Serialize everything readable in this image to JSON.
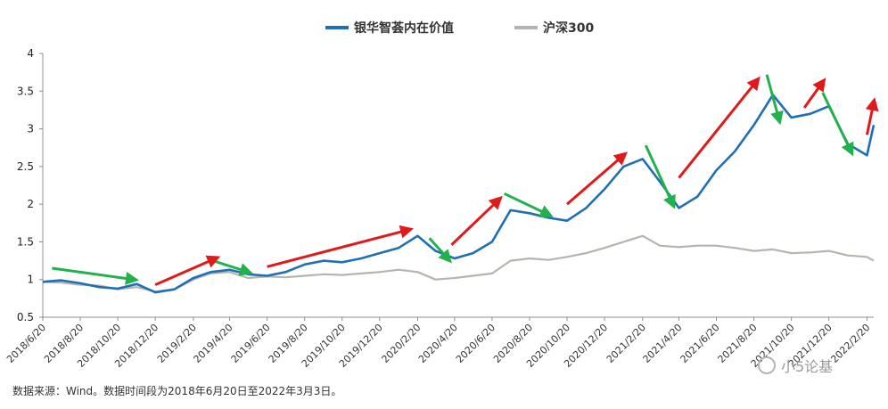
{
  "chart_data": {
    "type": "line",
    "legend": {
      "placement": "top-center"
    },
    "ylim": [
      0.5,
      4
    ],
    "yticks": [
      "0.5",
      "1",
      "1.5",
      "2",
      "2.5",
      "3",
      "3.5",
      "4"
    ],
    "xticks": [
      "2018/6/20",
      "2018/8/20",
      "2018/10/20",
      "2018/12/20",
      "2019/2/20",
      "2019/4/20",
      "2019/6/20",
      "2019/8/20",
      "2019/10/20",
      "2019/12/20",
      "2020/2/20",
      "2020/4/20",
      "2020/6/20",
      "2020/8/20",
      "2020/10/20",
      "2020/12/20",
      "2021/2/20",
      "2021/4/20",
      "2021/6/20",
      "2021/8/20",
      "2021/10/20",
      "2021/12/20",
      "2022/2/20"
    ],
    "grid": false,
    "series": [
      {
        "name": "银华智荟内在价值",
        "color": "#1f6fb5",
        "x": [
          "2018/6/20",
          "2018/7/20",
          "2018/8/20",
          "2018/9/20",
          "2018/10/20",
          "2018/11/20",
          "2018/12/20",
          "2019/1/20",
          "2019/2/20",
          "2019/3/20",
          "2019/4/20",
          "2019/5/20",
          "2019/6/20",
          "2019/7/20",
          "2019/8/20",
          "2019/9/20",
          "2019/10/20",
          "2019/11/20",
          "2019/12/20",
          "2020/1/20",
          "2020/2/20",
          "2020/3/20",
          "2020/4/20",
          "2020/5/20",
          "2020/6/20",
          "2020/7/20",
          "2020/8/20",
          "2020/9/20",
          "2020/10/20",
          "2020/11/20",
          "2020/12/20",
          "2021/1/20",
          "2021/2/20",
          "2021/3/20",
          "2021/4/20",
          "2021/5/20",
          "2021/6/20",
          "2021/7/20",
          "2021/8/20",
          "2021/9/20",
          "2021/10/20",
          "2021/11/20",
          "2021/12/20",
          "2022/1/20",
          "2022/2/20",
          "2022/3/3"
        ],
        "values": [
          0.97,
          0.99,
          0.95,
          0.9,
          0.88,
          0.94,
          0.83,
          0.87,
          1.02,
          1.1,
          1.13,
          1.07,
          1.05,
          1.1,
          1.2,
          1.25,
          1.23,
          1.28,
          1.35,
          1.42,
          1.58,
          1.38,
          1.28,
          1.35,
          1.5,
          1.92,
          1.88,
          1.82,
          1.78,
          1.95,
          2.2,
          2.5,
          2.6,
          2.3,
          1.95,
          2.1,
          2.45,
          2.7,
          3.05,
          3.45,
          3.15,
          3.2,
          3.3,
          2.8,
          2.65,
          3.05
        ]
      },
      {
        "name": "沪深300",
        "color": "#b8b3ad",
        "x": [
          "2018/6/20",
          "2018/7/20",
          "2018/8/20",
          "2018/9/20",
          "2018/10/20",
          "2018/11/20",
          "2018/12/20",
          "2019/1/20",
          "2019/2/20",
          "2019/3/20",
          "2019/4/20",
          "2019/5/20",
          "2019/6/20",
          "2019/7/20",
          "2019/8/20",
          "2019/9/20",
          "2019/10/20",
          "2019/11/20",
          "2019/12/20",
          "2020/1/20",
          "2020/2/20",
          "2020/3/20",
          "2020/4/20",
          "2020/5/20",
          "2020/6/20",
          "2020/7/20",
          "2020/8/20",
          "2020/9/20",
          "2020/10/20",
          "2020/11/20",
          "2020/12/20",
          "2021/1/20",
          "2021/2/20",
          "2021/3/20",
          "2021/4/20",
          "2021/5/20",
          "2021/6/20",
          "2021/7/20",
          "2021/8/20",
          "2021/9/20",
          "2021/10/20",
          "2021/11/20",
          "2021/12/20",
          "2022/1/20",
          "2022/2/20",
          "2022/3/3"
        ],
        "values": [
          0.97,
          0.96,
          0.93,
          0.92,
          0.87,
          0.9,
          0.84,
          0.87,
          1.0,
          1.08,
          1.1,
          1.02,
          1.04,
          1.03,
          1.05,
          1.07,
          1.06,
          1.08,
          1.1,
          1.13,
          1.1,
          1.0,
          1.02,
          1.05,
          1.08,
          1.25,
          1.28,
          1.26,
          1.3,
          1.35,
          1.42,
          1.5,
          1.58,
          1.45,
          1.43,
          1.45,
          1.45,
          1.42,
          1.38,
          1.4,
          1.35,
          1.36,
          1.38,
          1.32,
          1.3,
          1.25
        ]
      }
    ],
    "annotations": {
      "red_arrows": [
        {
          "from": [
            "2018/12/20",
            0.93
          ],
          "to": [
            "2019/3/28",
            1.28
          ]
        },
        {
          "from": [
            "2019/6/20",
            1.17
          ],
          "to": [
            "2020/2/5",
            1.66
          ]
        },
        {
          "from": [
            "2020/4/15",
            1.46
          ],
          "to": [
            "2020/7/1",
            2.06
          ]
        },
        {
          "from": [
            "2020/10/20",
            2.0
          ],
          "to": [
            "2021/1/20",
            2.65
          ]
        },
        {
          "from": [
            "2021/4/20",
            2.35
          ],
          "to": [
            "2021/8/25",
            3.64
          ]
        },
        {
          "from": [
            "2021/11/10",
            3.28
          ],
          "to": [
            "2021/12/10",
            3.62
          ]
        },
        {
          "from": [
            "2022/2/20",
            2.92
          ],
          "to": [
            "2022/3/3",
            3.35
          ]
        }
      ],
      "green_arrows": [
        {
          "from": [
            "2018/7/5",
            1.15
          ],
          "to": [
            "2018/11/15",
            1.0
          ]
        },
        {
          "from": [
            "2019/3/20",
            1.26
          ],
          "to": [
            "2019/5/20",
            1.1
          ]
        },
        {
          "from": [
            "2020/3/10",
            1.55
          ],
          "to": [
            "2020/4/10",
            1.27
          ]
        },
        {
          "from": [
            "2020/7/10",
            2.14
          ],
          "to": [
            "2020/9/20",
            1.86
          ]
        },
        {
          "from": [
            "2021/2/25",
            2.78
          ],
          "to": [
            "2021/4/10",
            2.0
          ]
        },
        {
          "from": [
            "2021/9/10",
            3.72
          ],
          "to": [
            "2021/9/30",
            3.12
          ]
        },
        {
          "from": [
            "2021/12/10",
            3.48
          ],
          "to": [
            "2022/1/25",
            2.7
          ]
        }
      ]
    }
  },
  "footer": {
    "source_note": "数据来源：Wind。数据时间段为2018年6月20日至2022年3月3日。"
  },
  "watermark": {
    "text": "小5论基"
  }
}
